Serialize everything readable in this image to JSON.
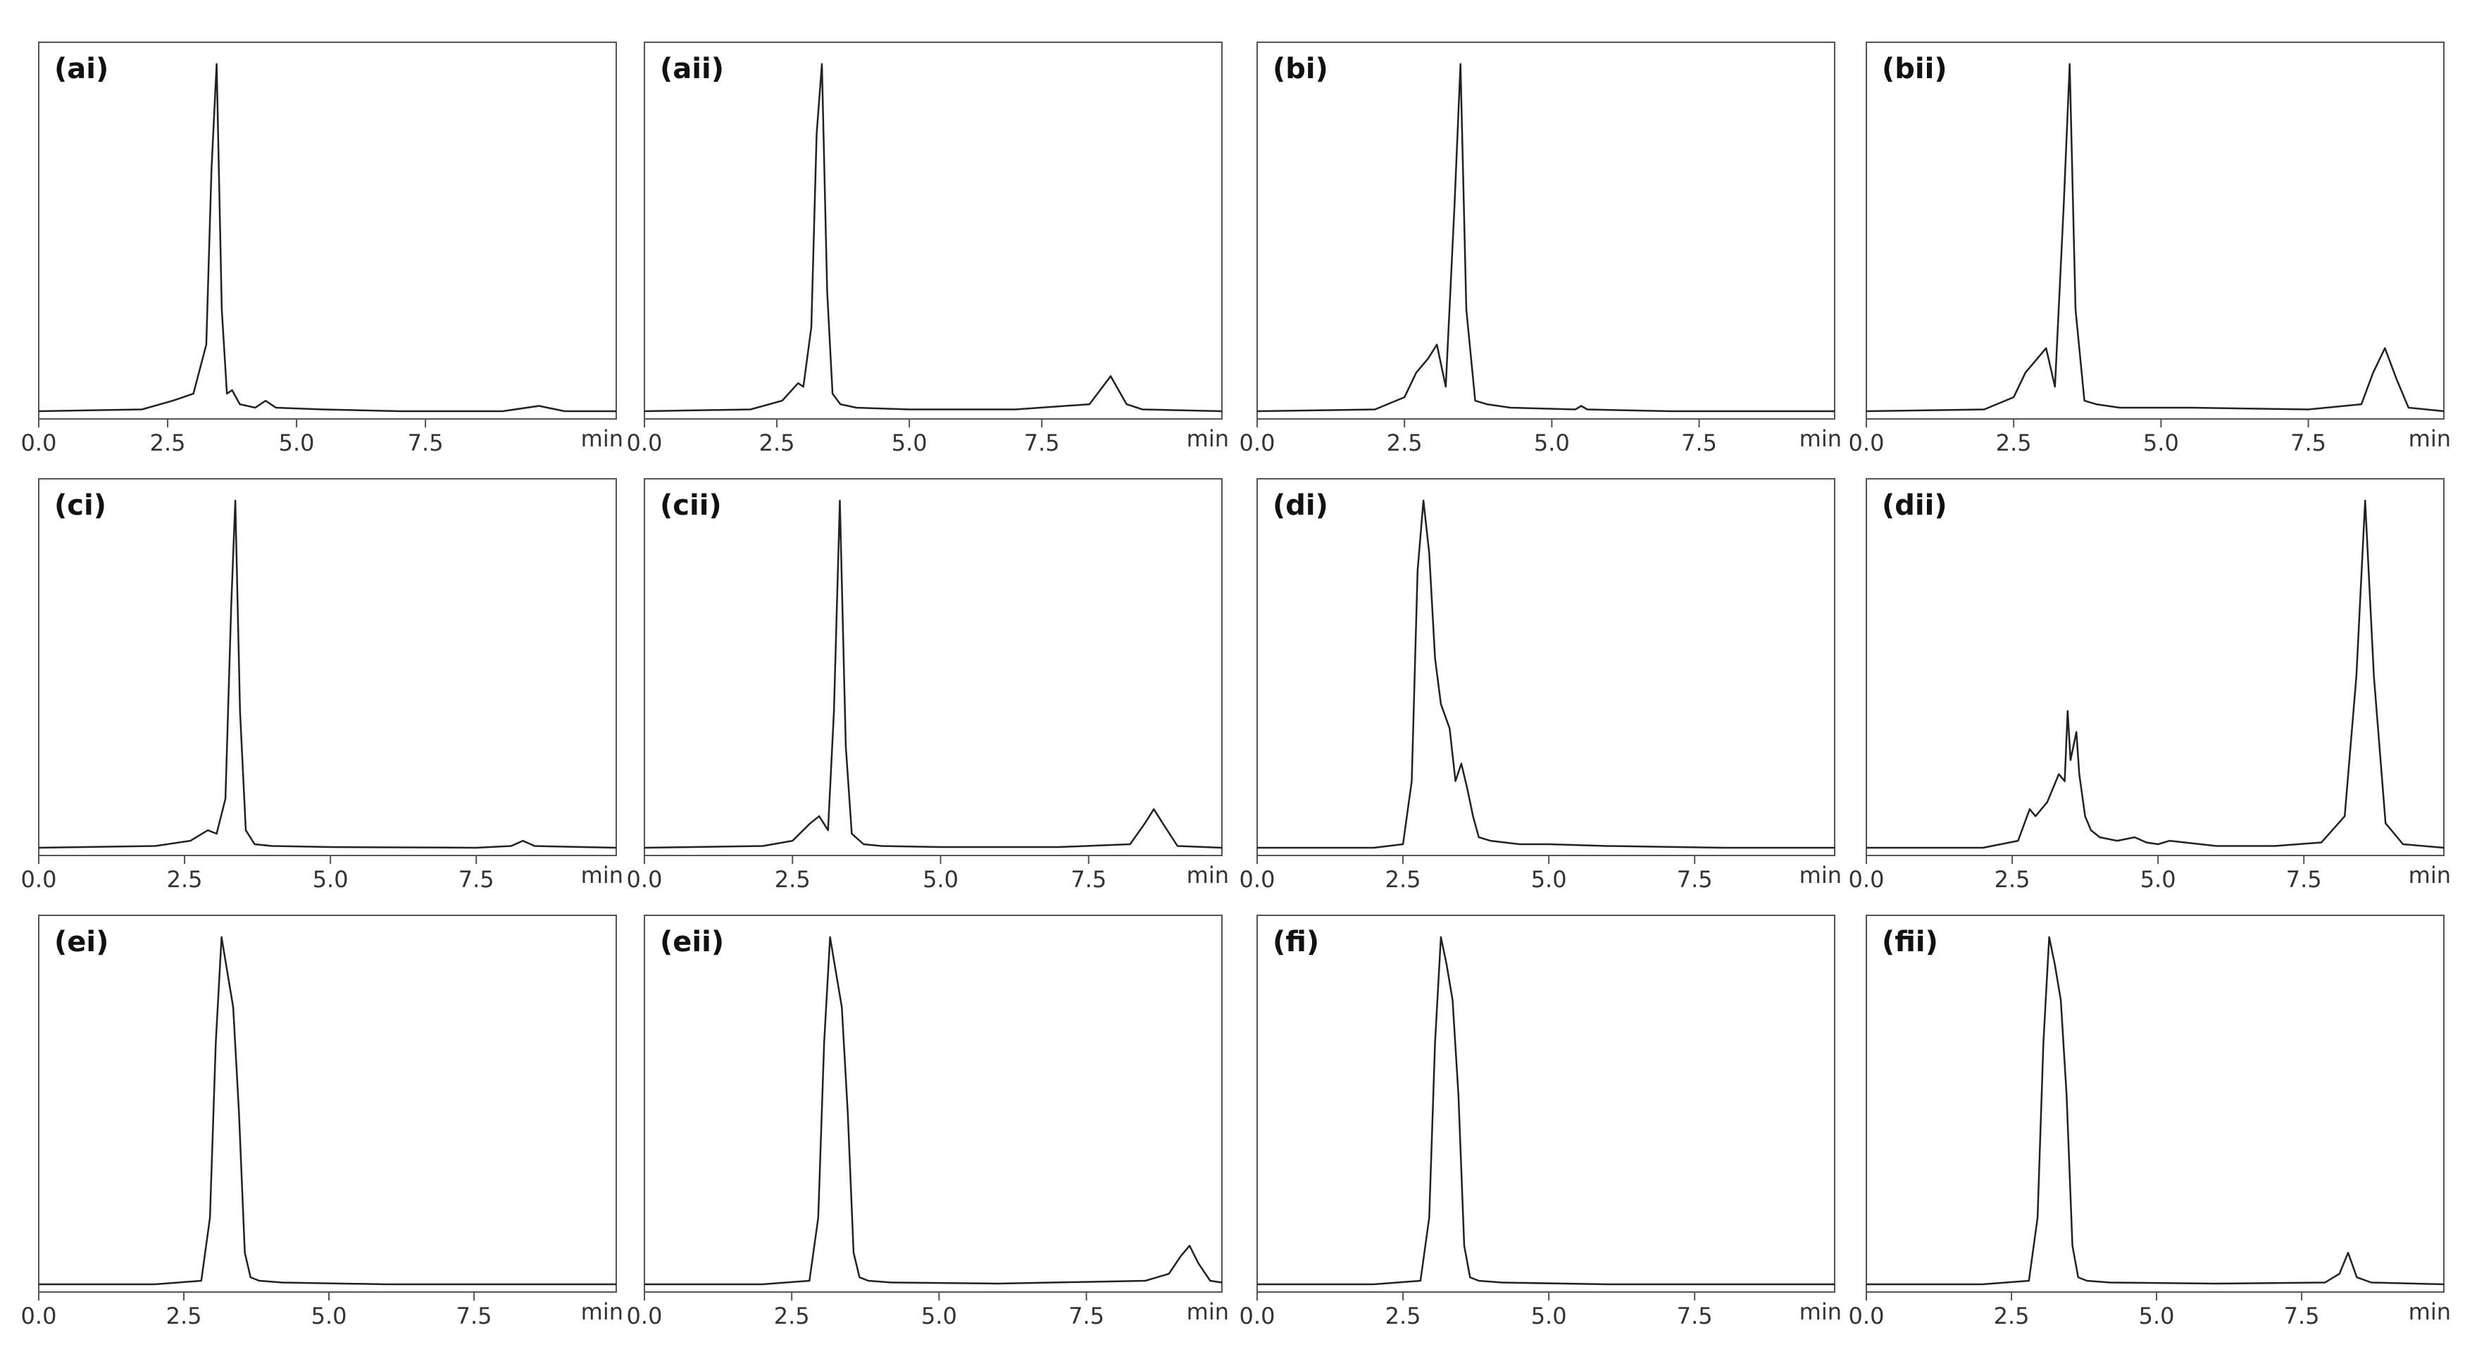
{
  "chart_data": [
    {
      "type": "line",
      "title": "(ai)",
      "xlabel": "min",
      "color": "#222",
      "xlim": [
        0,
        11.2
      ],
      "ylim": [
        0,
        105
      ],
      "xticks": [
        {
          "value": 0,
          "label": "0.0"
        },
        {
          "value": 2.5,
          "label": "2.5"
        },
        {
          "value": 5,
          "label": "5.0"
        },
        {
          "value": 7.5,
          "label": "7.5"
        }
      ],
      "x": [
        0,
        2.0,
        2.6,
        3.0,
        3.25,
        3.35,
        3.45,
        3.55,
        3.65,
        3.75,
        3.9,
        4.2,
        4.4,
        4.6,
        5.5,
        7.0,
        9.0,
        9.7,
        10.2,
        11.2
      ],
      "values": [
        1,
        1.5,
        4,
        6,
        20,
        70,
        100,
        30,
        6,
        7,
        3,
        2,
        4,
        2,
        1.5,
        1,
        1,
        2.5,
        1,
        1
      ]
    },
    {
      "type": "line",
      "title": "(aii)",
      "xlabel": "min",
      "color": "#222",
      "xlim": [
        0,
        10.9
      ],
      "ylim": [
        0,
        105
      ],
      "xticks": [
        {
          "value": 0,
          "label": "0.0"
        },
        {
          "value": 2.5,
          "label": "2.5"
        },
        {
          "value": 5,
          "label": "5.0"
        },
        {
          "value": 7.5,
          "label": "7.5"
        }
      ],
      "x": [
        0,
        2.0,
        2.6,
        2.9,
        3.0,
        3.15,
        3.25,
        3.35,
        3.45,
        3.55,
        3.7,
        4.0,
        5.0,
        7.0,
        8.4,
        8.8,
        9.1,
        9.4,
        10.9
      ],
      "values": [
        1,
        1.5,
        4,
        9,
        8,
        25,
        80,
        100,
        35,
        6,
        3,
        2,
        1.5,
        1.5,
        3,
        11,
        3,
        1.5,
        1
      ]
    },
    {
      "type": "line",
      "title": "(bi)",
      "xlabel": "min",
      "color": "#222",
      "xlim": [
        0,
        9.8
      ],
      "ylim": [
        0,
        105
      ],
      "xticks": [
        {
          "value": 0,
          "label": "0.0"
        },
        {
          "value": 2.5,
          "label": "2.5"
        },
        {
          "value": 5,
          "label": "5.0"
        },
        {
          "value": 7.5,
          "label": "7.5"
        }
      ],
      "x": [
        0,
        2.0,
        2.5,
        2.7,
        2.9,
        3.05,
        3.2,
        3.35,
        3.45,
        3.55,
        3.7,
        3.9,
        4.3,
        5.4,
        5.5,
        5.6,
        7.0,
        9.8
      ],
      "values": [
        1,
        1.5,
        5,
        12,
        16,
        20,
        8,
        60,
        100,
        30,
        4,
        3,
        2,
        1.5,
        2.5,
        1.5,
        1,
        1
      ]
    },
    {
      "type": "line",
      "title": "(bii)",
      "xlabel": "min",
      "color": "#222",
      "xlim": [
        0,
        9.8
      ],
      "ylim": [
        0,
        105
      ],
      "xticks": [
        {
          "value": 0,
          "label": "0.0"
        },
        {
          "value": 2.5,
          "label": "2.5"
        },
        {
          "value": 5,
          "label": "5.0"
        },
        {
          "value": 7.5,
          "label": "7.5"
        }
      ],
      "x": [
        0,
        2.0,
        2.5,
        2.7,
        2.9,
        3.05,
        3.2,
        3.35,
        3.45,
        3.55,
        3.7,
        3.9,
        4.3,
        5.5,
        7.5,
        8.4,
        8.6,
        8.8,
        9.0,
        9.2,
        9.8
      ],
      "values": [
        1,
        1.5,
        5,
        12,
        16,
        19,
        8,
        60,
        100,
        30,
        4,
        3,
        2,
        2,
        1.5,
        3,
        12,
        19,
        10,
        2,
        1
      ]
    },
    {
      "type": "line",
      "title": "(ci)",
      "xlabel": "min",
      "color": "#222",
      "xlim": [
        0,
        9.9
      ],
      "ylim": [
        0,
        105
      ],
      "xticks": [
        {
          "value": 0,
          "label": "0.0"
        },
        {
          "value": 2.5,
          "label": "2.5"
        },
        {
          "value": 5,
          "label": "5.0"
        },
        {
          "value": 7.5,
          "label": "7.5"
        }
      ],
      "x": [
        0,
        2.0,
        2.6,
        2.9,
        3.05,
        3.2,
        3.3,
        3.37,
        3.45,
        3.55,
        3.7,
        4.0,
        5.0,
        7.5,
        8.1,
        8.3,
        8.5,
        9.9
      ],
      "values": [
        1,
        1.5,
        3,
        6,
        5,
        15,
        70,
        100,
        40,
        6,
        2,
        1.5,
        1.2,
        1,
        1.5,
        3,
        1.5,
        1
      ]
    },
    {
      "type": "line",
      "title": "(cii)",
      "xlabel": "min",
      "color": "#222",
      "xlim": [
        0,
        9.75
      ],
      "ylim": [
        0,
        105
      ],
      "xticks": [
        {
          "value": 0,
          "label": "0.0"
        },
        {
          "value": 2.5,
          "label": "2.5"
        },
        {
          "value": 5,
          "label": "5.0"
        },
        {
          "value": 7.5,
          "label": "7.5"
        }
      ],
      "x": [
        0,
        2.0,
        2.5,
        2.8,
        2.95,
        3.1,
        3.2,
        3.3,
        3.4,
        3.5,
        3.7,
        4.0,
        5.0,
        7.0,
        8.2,
        8.45,
        8.6,
        8.75,
        9.0,
        9.75
      ],
      "values": [
        1,
        1.5,
        3,
        8,
        10,
        6,
        40,
        100,
        30,
        5,
        2,
        1.5,
        1.2,
        1.2,
        2,
        8,
        12,
        8,
        1.5,
        1
      ]
    },
    {
      "type": "line",
      "title": "(di)",
      "xlabel": "min",
      "color": "#222",
      "xlim": [
        0,
        9.9
      ],
      "ylim": [
        0,
        105
      ],
      "xticks": [
        {
          "value": 0,
          "label": "0.0"
        },
        {
          "value": 2.5,
          "label": "2.5"
        },
        {
          "value": 5,
          "label": "5.0"
        },
        {
          "value": 7.5,
          "label": "7.5"
        }
      ],
      "x": [
        0,
        2.0,
        2.5,
        2.65,
        2.75,
        2.85,
        2.95,
        3.05,
        3.15,
        3.3,
        3.4,
        3.5,
        3.6,
        3.7,
        3.8,
        4.0,
        4.5,
        5.0,
        6.0,
        8.0,
        9.9
      ],
      "values": [
        1,
        1,
        2,
        20,
        80,
        100,
        85,
        55,
        42,
        35,
        20,
        25,
        18,
        10,
        4,
        3,
        2,
        2,
        1.5,
        1,
        1
      ]
    },
    {
      "type": "line",
      "title": "(dii)",
      "xlabel": "min",
      "color": "#222",
      "xlim": [
        0,
        9.9
      ],
      "ylim": [
        0,
        105
      ],
      "xticks": [
        {
          "value": 0,
          "label": "0.0"
        },
        {
          "value": 2.5,
          "label": "2.5"
        },
        {
          "value": 5,
          "label": "5.0"
        },
        {
          "value": 7.5,
          "label": "7.5"
        }
      ],
      "x": [
        0,
        2.0,
        2.6,
        2.8,
        2.9,
        3.1,
        3.3,
        3.4,
        3.45,
        3.5,
        3.6,
        3.65,
        3.75,
        3.85,
        4.0,
        4.3,
        4.6,
        4.8,
        5.0,
        5.2,
        6.0,
        7.0,
        7.8,
        8.2,
        8.4,
        8.55,
        8.7,
        8.9,
        9.2,
        9.9
      ],
      "values": [
        1,
        1,
        3,
        12,
        10,
        14,
        22,
        20,
        40,
        26,
        34,
        22,
        10,
        6,
        4,
        3,
        4,
        2.5,
        2,
        3,
        1.5,
        1.5,
        2.5,
        10,
        50,
        100,
        50,
        8,
        2,
        1
      ]
    },
    {
      "type": "line",
      "title": "(ei)",
      "xlabel": "min",
      "color": "#222",
      "xlim": [
        0,
        9.95
      ],
      "ylim": [
        0,
        105
      ],
      "xticks": [
        {
          "value": 0,
          "label": "0.0"
        },
        {
          "value": 2.5,
          "label": "2.5"
        },
        {
          "value": 5,
          "label": "5.0"
        },
        {
          "value": 7.5,
          "label": "7.5"
        }
      ],
      "x": [
        0,
        2.0,
        2.8,
        2.95,
        3.05,
        3.15,
        3.25,
        3.35,
        3.45,
        3.55,
        3.65,
        3.8,
        4.2,
        6.0,
        9.95
      ],
      "values": [
        1,
        1,
        2,
        20,
        70,
        100,
        90,
        80,
        50,
        10,
        3,
        2,
        1.5,
        1,
        1
      ]
    },
    {
      "type": "line",
      "title": "(eii)",
      "xlabel": "min",
      "color": "#222",
      "xlim": [
        0,
        9.8
      ],
      "ylim": [
        0,
        105
      ],
      "xticks": [
        {
          "value": 0,
          "label": "0.0"
        },
        {
          "value": 2.5,
          "label": "2.5"
        },
        {
          "value": 5,
          "label": "5.0"
        },
        {
          "value": 7.5,
          "label": "7.5"
        }
      ],
      "x": [
        0,
        2.0,
        2.8,
        2.95,
        3.05,
        3.15,
        3.25,
        3.35,
        3.45,
        3.55,
        3.65,
        3.8,
        4.2,
        6.0,
        8.5,
        8.9,
        9.1,
        9.25,
        9.4,
        9.6,
        9.8
      ],
      "values": [
        1,
        1,
        2,
        20,
        70,
        100,
        90,
        80,
        50,
        10,
        3,
        2,
        1.5,
        1.2,
        2,
        4,
        9,
        12,
        7,
        2,
        1.5
      ]
    },
    {
      "type": "line",
      "title": "(fi)",
      "xlabel": "min",
      "color": "#222",
      "xlim": [
        0,
        9.9
      ],
      "ylim": [
        0,
        105
      ],
      "xticks": [
        {
          "value": 0,
          "label": "0.0"
        },
        {
          "value": 2.5,
          "label": "2.5"
        },
        {
          "value": 5,
          "label": "5.0"
        },
        {
          "value": 7.5,
          "label": "7.5"
        }
      ],
      "x": [
        0,
        2.0,
        2.8,
        2.95,
        3.05,
        3.15,
        3.25,
        3.35,
        3.45,
        3.55,
        3.65,
        3.8,
        4.2,
        6.0,
        9.9
      ],
      "values": [
        1,
        1,
        2,
        20,
        70,
        100,
        92,
        82,
        55,
        12,
        3,
        2,
        1.5,
        1,
        1
      ]
    },
    {
      "type": "line",
      "title": "(fii)",
      "xlabel": "min",
      "color": "#222",
      "xlim": [
        0,
        9.95
      ],
      "ylim": [
        0,
        105
      ],
      "xticks": [
        {
          "value": 0,
          "label": "0.0"
        },
        {
          "value": 2.5,
          "label": "2.5"
        },
        {
          "value": 5,
          "label": "5.0"
        },
        {
          "value": 7.5,
          "label": "7.5"
        }
      ],
      "x": [
        0,
        2.0,
        2.8,
        2.95,
        3.05,
        3.15,
        3.25,
        3.35,
        3.45,
        3.55,
        3.65,
        3.8,
        4.2,
        6.0,
        7.9,
        8.15,
        8.3,
        8.45,
        8.7,
        9.95
      ],
      "values": [
        1,
        1,
        2,
        20,
        70,
        100,
        92,
        82,
        55,
        12,
        3,
        2,
        1.5,
        1.2,
        1.5,
        4,
        10,
        3,
        1.5,
        1
      ]
    }
  ]
}
